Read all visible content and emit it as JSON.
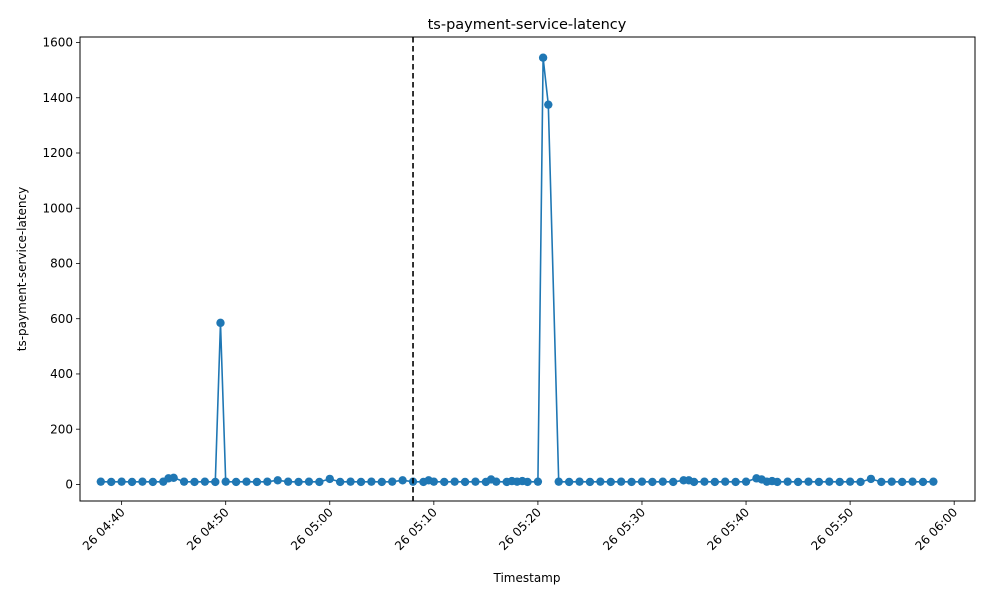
{
  "chart_data": {
    "type": "line",
    "title": "ts-payment-service-latency",
    "xlabel": "Timestamp",
    "ylabel": "ts-payment-service-latency",
    "x_tick_labels": [
      "26 04:40",
      "26 04:50",
      "26 05:00",
      "26 05:10",
      "26 05:20",
      "26 05:30",
      "26 05:40",
      "26 05:50",
      "26 06:00"
    ],
    "x_ticks": [
      "04:40",
      "04:50",
      "05:00",
      "05:10",
      "05:20",
      "05:30",
      "05:40",
      "05:50",
      "06:00"
    ],
    "xlim": [
      "04:36",
      "06:02"
    ],
    "y_ticks": [
      0,
      200,
      400,
      600,
      800,
      1000,
      1200,
      1400,
      1600
    ],
    "ylim": [
      -60,
      1620
    ],
    "grid": false,
    "line_color": "#1f77b4",
    "marker": "circle",
    "vline": {
      "x": "05:08",
      "style": "dashed",
      "color": "#000000"
    },
    "series": [
      {
        "x": [
          "04:38",
          "04:39",
          "04:40",
          "04:41",
          "04:42",
          "04:43",
          "04:44",
          "04:45",
          "04:46",
          "04:47",
          "04:48",
          "04:49",
          "04:50",
          "04:51",
          "04:52",
          "04:53",
          "04:54",
          "04:55",
          "04:56",
          "04:57",
          "04:58",
          "04:59",
          "05:00",
          "05:01",
          "05:02",
          "05:03",
          "05:04",
          "05:05",
          "05:06",
          "05:07",
          "05:08",
          "05:09",
          "05:10",
          "05:11",
          "05:12",
          "05:13",
          "05:14",
          "05:15",
          "05:16",
          "05:17",
          "05:18",
          "05:19",
          "05:20",
          "05:21",
          "05:22",
          "05:23",
          "05:24",
          "05:25",
          "05:26",
          "05:27",
          "05:28",
          "05:29",
          "05:30",
          "05:31",
          "05:32",
          "05:33",
          "05:34",
          "05:35",
          "05:36",
          "05:37",
          "05:38",
          "05:39",
          "05:40",
          "05:41",
          "05:42",
          "05:43",
          "05:44",
          "05:45",
          "05:46",
          "05:47",
          "05:48",
          "05:49",
          "05:50",
          "05:51",
          "05:52",
          "05:53",
          "05:54",
          "05:55",
          "05:56",
          "05:57",
          "05:58"
        ],
        "y": [
          10,
          9,
          10,
          9,
          10,
          9,
          10,
          9,
          10,
          9,
          10,
          9,
          10,
          9,
          10,
          9,
          10,
          9,
          10,
          9,
          10,
          9,
          10,
          9,
          10,
          9,
          10,
          9,
          10,
          9,
          10,
          9,
          10,
          9,
          10,
          9,
          10,
          9,
          10,
          9,
          10,
          9,
          10,
          9,
          10,
          9,
          10,
          9,
          10,
          9,
          10,
          9,
          10,
          9,
          10,
          9,
          10,
          9,
          10,
          9,
          10,
          9,
          10,
          9,
          10,
          9,
          10,
          9,
          10,
          9,
          10,
          9,
          10,
          9,
          10,
          9,
          10,
          9,
          10,
          9,
          10
        ]
      }
    ],
    "point_overrides": [
      {
        "x": "04:44:30",
        "y": 22
      },
      {
        "x": "04:45:00",
        "y": 24
      },
      {
        "x": "04:49:30",
        "y": 585
      },
      {
        "x": "04:55:00",
        "y": 15
      },
      {
        "x": "05:00:00",
        "y": 20
      },
      {
        "x": "05:07:00",
        "y": 15
      },
      {
        "x": "05:09:30",
        "y": 15
      },
      {
        "x": "05:15:30",
        "y": 18
      },
      {
        "x": "05:17:30",
        "y": 12
      },
      {
        "x": "05:18:30",
        "y": 12
      },
      {
        "x": "05:20:30",
        "y": 1545
      },
      {
        "x": "05:21:00",
        "y": 1375
      },
      {
        "x": "05:34:00",
        "y": 15
      },
      {
        "x": "05:34:30",
        "y": 15
      },
      {
        "x": "05:41:00",
        "y": 22
      },
      {
        "x": "05:41:30",
        "y": 18
      },
      {
        "x": "05:42:30",
        "y": 12
      },
      {
        "x": "05:52:00",
        "y": 20
      }
    ]
  }
}
